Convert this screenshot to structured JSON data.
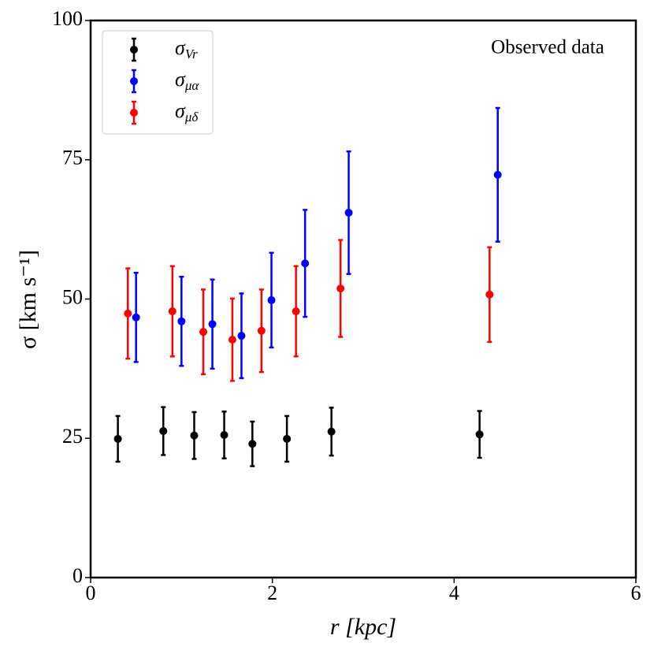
{
  "chart_data": {
    "type": "errorbar-scatter",
    "xlabel": "r [kpc]",
    "ylabel": "σ [km s⁻¹]",
    "annotation": "Observed data",
    "xlim": [
      0,
      6
    ],
    "xticks": [
      0,
      2,
      4,
      6
    ],
    "ylim": [
      0,
      100
    ],
    "yticks": [
      0,
      25,
      50,
      75,
      100
    ],
    "legend": "upper left",
    "series": [
      {
        "name": "σVr",
        "color": "#000000",
        "x": [
          0.3,
          0.8,
          1.14,
          1.47,
          1.78,
          2.16,
          2.65,
          4.28
        ],
        "values": [
          24.9,
          26.3,
          25.5,
          25.6,
          24.0,
          24.9,
          26.2,
          25.7
        ],
        "errors": [
          4.1,
          4.3,
          4.2,
          4.2,
          4.0,
          4.1,
          4.3,
          4.2
        ]
      },
      {
        "name": "σμα",
        "color": "#0000ff",
        "x": [
          0.5,
          1.0,
          1.34,
          1.66,
          1.99,
          2.36,
          2.84,
          4.48
        ],
        "values": [
          46.7,
          46.0,
          45.5,
          43.4,
          49.8,
          56.4,
          65.5,
          72.3
        ],
        "errors": [
          8.0,
          8.0,
          8.0,
          7.6,
          8.5,
          9.6,
          11.0,
          12.0
        ]
      },
      {
        "name": "σμδ",
        "color": "#ff0000",
        "x": [
          0.41,
          0.9,
          1.24,
          1.56,
          1.88,
          2.26,
          2.75,
          4.39
        ],
        "values": [
          47.4,
          47.8,
          44.1,
          42.7,
          44.3,
          47.8,
          51.9,
          50.8
        ],
        "errors": [
          8.1,
          8.1,
          7.6,
          7.4,
          7.4,
          8.1,
          8.7,
          8.5
        ]
      }
    ]
  }
}
